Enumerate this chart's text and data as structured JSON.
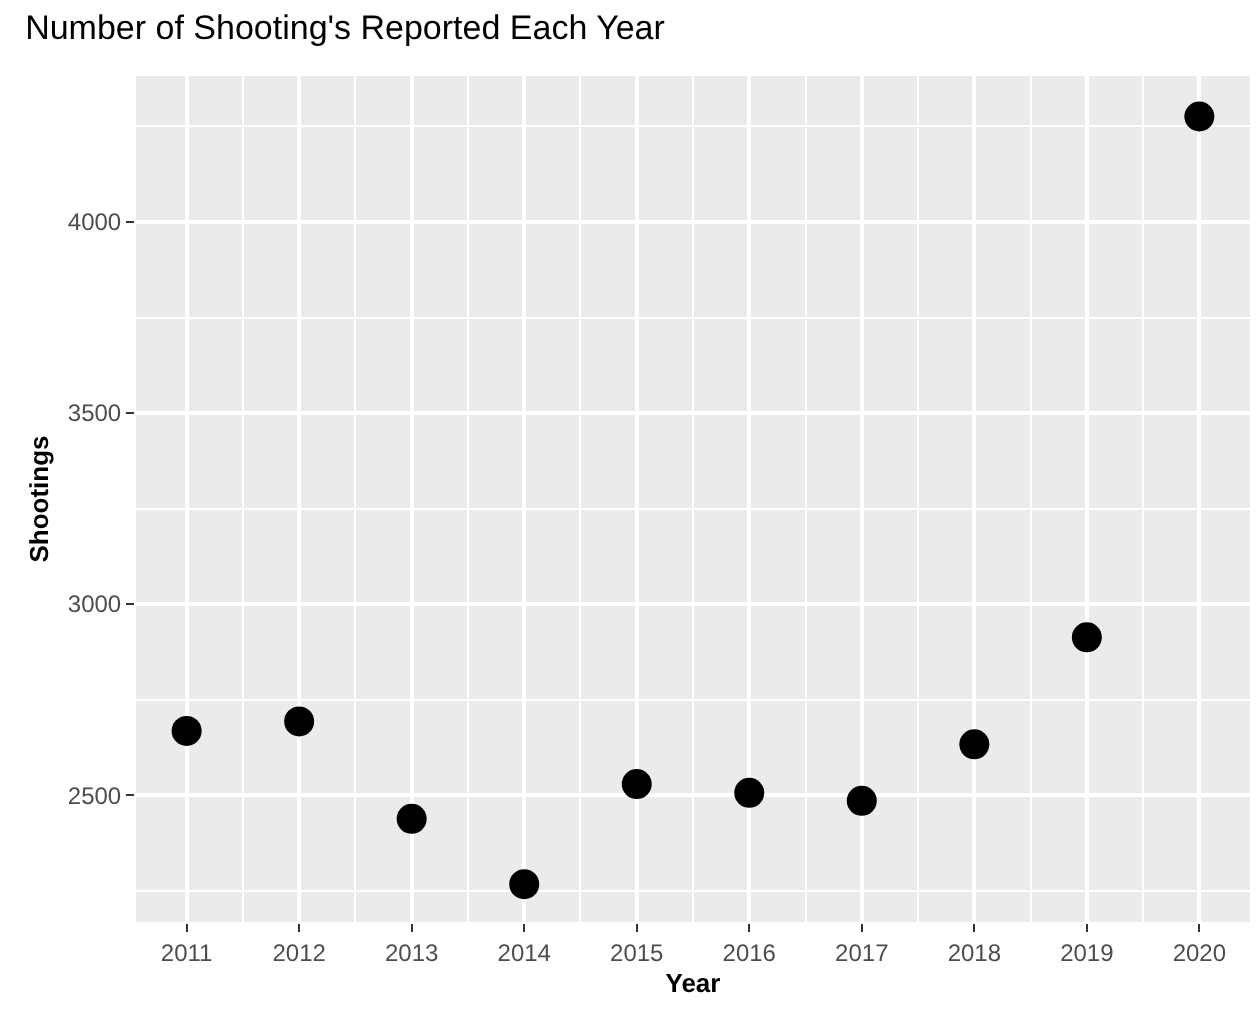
{
  "chart_data": {
    "type": "scatter",
    "title": "Number of Shooting's Reported Each Year",
    "xlabel": "Year",
    "ylabel": "Shootings",
    "x": [
      2011,
      2012,
      2013,
      2014,
      2015,
      2016,
      2017,
      2018,
      2019,
      2020
    ],
    "series": [
      {
        "color": "#000000",
        "values": [
          2668,
          2693,
          2438,
          2267,
          2529,
          2506,
          2485,
          2633,
          2913,
          4276
        ]
      }
    ],
    "xlim": [
      2010.55,
      2020.45
    ],
    "xticks": [
      2011,
      2012,
      2013,
      2014,
      2015,
      2016,
      2017,
      2018,
      2019,
      2020
    ],
    "ylim": [
      2168,
      4382
    ],
    "yticks": [
      2500,
      3000,
      3500,
      4000
    ],
    "grid": true,
    "marker": "circle"
  }
}
